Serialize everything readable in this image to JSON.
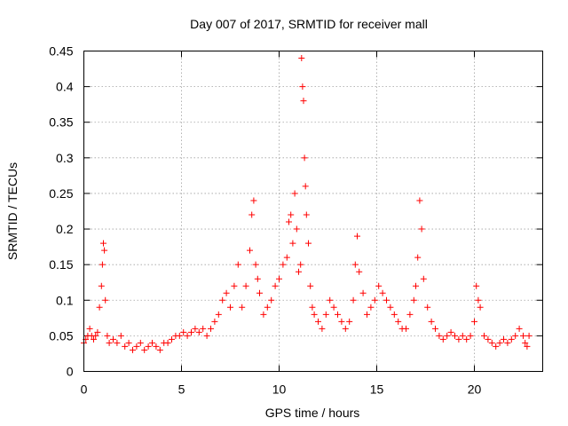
{
  "chart_data": {
    "type": "scatter",
    "title": "Day 007 of 2017, SRMTID for receiver mall",
    "xlabel": "GPS time / hours",
    "ylabel": "SRMTID / TECUs",
    "xlim": [
      0,
      23.5
    ],
    "ylim": [
      0,
      0.45
    ],
    "xticks": [
      0,
      5,
      10,
      15,
      20
    ],
    "xtick_labels": [
      "0",
      "5",
      "10",
      "15",
      "20"
    ],
    "yticks": [
      0,
      0.05,
      0.1,
      0.15,
      0.2,
      0.25,
      0.3,
      0.35,
      0.4,
      0.45
    ],
    "ytick_labels": [
      "0",
      "0.05",
      "0.1",
      "0.15",
      "0.2",
      "0.25",
      "0.3",
      "0.35",
      "0.4",
      "0.45"
    ],
    "grid": true,
    "marker": "+",
    "series": [
      {
        "name": "SRMTID",
        "color": "#ff0000",
        "x": [
          0.0,
          0.1,
          0.2,
          0.3,
          0.4,
          0.5,
          0.6,
          0.7,
          0.8,
          0.9,
          0.95,
          1.0,
          1.05,
          1.1,
          1.2,
          1.3,
          1.5,
          1.7,
          1.9,
          2.1,
          2.3,
          2.5,
          2.7,
          2.9,
          3.1,
          3.3,
          3.5,
          3.7,
          3.9,
          4.1,
          4.3,
          4.5,
          4.7,
          4.9,
          5.1,
          5.3,
          5.5,
          5.7,
          5.9,
          6.1,
          6.3,
          6.5,
          6.7,
          6.9,
          7.1,
          7.3,
          7.5,
          7.7,
          7.9,
          8.1,
          8.3,
          8.5,
          8.6,
          8.7,
          8.8,
          8.9,
          9.0,
          9.2,
          9.4,
          9.6,
          9.8,
          10.0,
          10.2,
          10.4,
          10.5,
          10.6,
          10.7,
          10.8,
          10.9,
          11.0,
          11.1,
          11.15,
          11.2,
          11.25,
          11.3,
          11.35,
          11.4,
          11.5,
          11.6,
          11.7,
          11.8,
          12.0,
          12.2,
          12.4,
          12.6,
          12.8,
          13.0,
          13.2,
          13.4,
          13.6,
          13.8,
          13.9,
          14.0,
          14.1,
          14.3,
          14.5,
          14.7,
          14.9,
          15.1,
          15.3,
          15.5,
          15.7,
          15.9,
          16.1,
          16.3,
          16.5,
          16.7,
          16.9,
          17.0,
          17.1,
          17.2,
          17.3,
          17.4,
          17.6,
          17.8,
          18.0,
          18.2,
          18.4,
          18.6,
          18.8,
          19.0,
          19.2,
          19.4,
          19.6,
          19.8,
          20.0,
          20.1,
          20.2,
          20.3,
          20.5,
          20.7,
          20.9,
          21.1,
          21.3,
          21.5,
          21.7,
          21.9,
          22.1,
          22.3,
          22.5,
          22.6,
          22.7,
          22.8
        ],
        "y": [
          0.04,
          0.045,
          0.05,
          0.06,
          0.05,
          0.045,
          0.05,
          0.055,
          0.09,
          0.12,
          0.15,
          0.18,
          0.17,
          0.1,
          0.05,
          0.04,
          0.045,
          0.04,
          0.05,
          0.035,
          0.04,
          0.03,
          0.035,
          0.04,
          0.03,
          0.035,
          0.04,
          0.035,
          0.03,
          0.04,
          0.04,
          0.045,
          0.05,
          0.05,
          0.055,
          0.05,
          0.055,
          0.06,
          0.055,
          0.06,
          0.05,
          0.06,
          0.07,
          0.08,
          0.1,
          0.11,
          0.09,
          0.12,
          0.15,
          0.09,
          0.12,
          0.17,
          0.22,
          0.24,
          0.15,
          0.13,
          0.11,
          0.08,
          0.09,
          0.1,
          0.12,
          0.13,
          0.15,
          0.16,
          0.21,
          0.22,
          0.18,
          0.25,
          0.2,
          0.14,
          0.15,
          0.44,
          0.4,
          0.38,
          0.3,
          0.26,
          0.22,
          0.18,
          0.12,
          0.09,
          0.08,
          0.07,
          0.06,
          0.08,
          0.1,
          0.09,
          0.08,
          0.07,
          0.06,
          0.07,
          0.1,
          0.15,
          0.19,
          0.14,
          0.11,
          0.08,
          0.09,
          0.1,
          0.12,
          0.11,
          0.1,
          0.09,
          0.08,
          0.07,
          0.06,
          0.06,
          0.08,
          0.1,
          0.12,
          0.16,
          0.24,
          0.2,
          0.13,
          0.09,
          0.07,
          0.06,
          0.05,
          0.045,
          0.05,
          0.055,
          0.05,
          0.045,
          0.05,
          0.045,
          0.05,
          0.07,
          0.12,
          0.1,
          0.09,
          0.05,
          0.045,
          0.04,
          0.035,
          0.04,
          0.045,
          0.04,
          0.045,
          0.05,
          0.06,
          0.05,
          0.04,
          0.035,
          0.05
        ]
      }
    ]
  }
}
